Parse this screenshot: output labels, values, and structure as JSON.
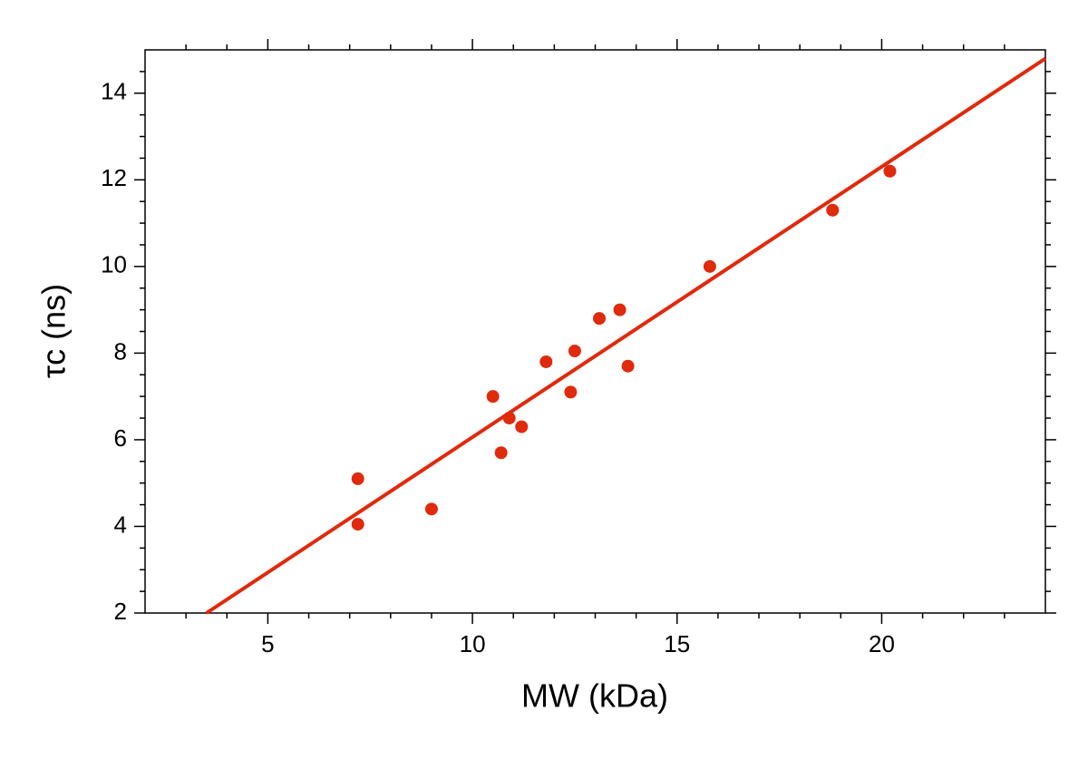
{
  "chart_data": {
    "type": "scatter",
    "x_label": "MW (kDa)",
    "y_label": "τc (ns)",
    "xlim": [
      2,
      24
    ],
    "ylim": [
      2,
      15
    ],
    "xticks": [
      5,
      10,
      15,
      20
    ],
    "yticks": [
      2,
      4,
      6,
      8,
      10,
      12,
      14
    ],
    "xminorticks": [
      3,
      4,
      6,
      7,
      8,
      9,
      11,
      12,
      13,
      14,
      16,
      17,
      18,
      19,
      21,
      22,
      23
    ],
    "yminorticks": [
      2.5,
      3,
      3.5,
      4.5,
      5,
      5.5,
      6.5,
      7,
      7.5,
      8.5,
      9,
      9.5,
      10.5,
      11,
      11.5,
      12.5,
      13,
      13.5,
      14.5
    ],
    "series": [
      {
        "type": "scatter",
        "color": "#e02a0c",
        "x": [
          7.2,
          7.2,
          9.0,
          10.5,
          10.9,
          10.7,
          11.2,
          11.8,
          12.4,
          12.5,
          13.1,
          13.6,
          13.8,
          15.8,
          18.8,
          20.2
        ],
        "values": [
          5.1,
          4.05,
          4.4,
          7.0,
          6.5,
          5.7,
          6.3,
          7.8,
          7.1,
          8.05,
          8.8,
          9.0,
          7.7,
          10.0,
          11.3,
          12.2
        ]
      },
      {
        "type": "line",
        "color": "#e02a0c",
        "x": [
          3.5,
          24
        ],
        "values": [
          2,
          14.8
        ]
      }
    ]
  }
}
